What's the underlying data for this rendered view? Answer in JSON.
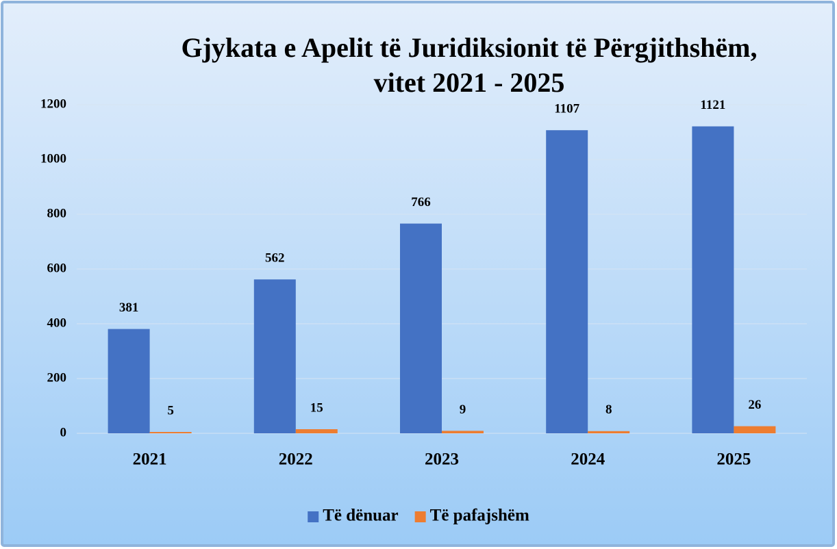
{
  "chart_data": {
    "type": "bar",
    "title": [
      "Gjykata e Apelit të Juridiksionit të Përgjithshëm,",
      "vitet 2021 - 2025"
    ],
    "categories": [
      "2021",
      "2022",
      "2023",
      "2024",
      "2025"
    ],
    "series": [
      {
        "name": "Të dënuar",
        "color": "#4472c4",
        "values": [
          381,
          562,
          766,
          1107,
          1121
        ]
      },
      {
        "name": "Të pafajshëm",
        "color": "#ed7d31",
        "values": [
          5,
          15,
          9,
          8,
          26
        ]
      }
    ],
    "ylim": [
      0,
      1200
    ],
    "yticks": [
      0,
      200,
      400,
      600,
      800,
      1000,
      1200
    ],
    "grid": true,
    "legend": "bottom"
  }
}
